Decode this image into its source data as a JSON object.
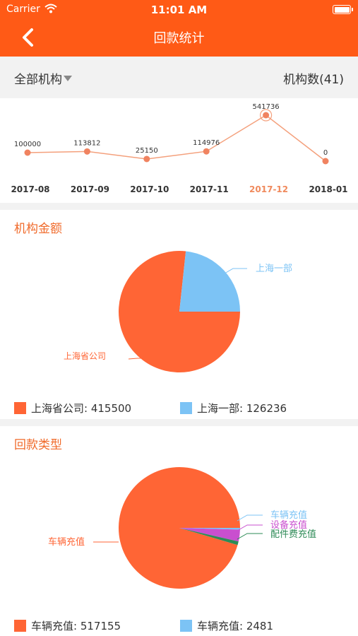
{
  "status_bar": {
    "carrier": "Carrier",
    "time": "11:01 AM"
  },
  "nav": {
    "title": "回款统计"
  },
  "filter": {
    "org_selector": "全部机构",
    "org_count": "机构数(41)"
  },
  "colors": {
    "brand": "#ff5a16",
    "selected_month": "#f08a5d",
    "pie_primary": "#ff6535",
    "pie_blue": "#7cc3f5",
    "pie_magenta": "#c94fcf",
    "pie_green": "#2e8b57",
    "title_orange": "#f06a2a"
  },
  "trend": {
    "months": [
      "2017-08",
      "2017-09",
      "2017-10",
      "2017-11",
      "2017-12",
      "2018-01"
    ],
    "values": [
      100000,
      113812,
      25150,
      114976,
      541736,
      0
    ],
    "selected_index": 4
  },
  "chart_data": [
    {
      "type": "pie",
      "title": "机构金额",
      "labels": [
        "上海省公司",
        "上海一部"
      ],
      "values": [
        415500,
        126236
      ],
      "legend": [
        "上海省公司: 415500",
        "上海一部: 126236"
      ]
    },
    {
      "type": "pie",
      "title": "回款类型",
      "labels": [
        "车辆充值",
        "车辆充值",
        "设备充值",
        "配件费充值"
      ],
      "values": [
        517155,
        2481,
        17000,
        5100
      ],
      "legend": [
        "车辆充值: 517155",
        "车辆充值: 2481"
      ]
    }
  ]
}
